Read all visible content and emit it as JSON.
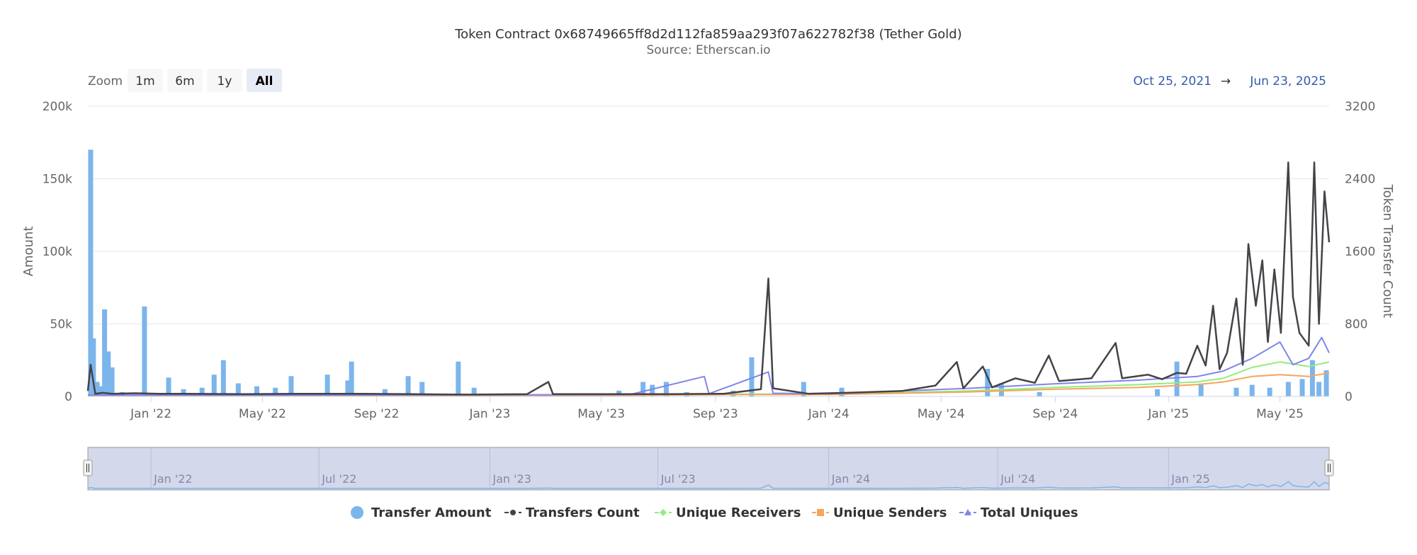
{
  "title": "Token Contract 0x68749665ff8d2d112fa859aa293f07a622782f38 (Tether Gold)",
  "subtitle": "Source: Etherscan.io",
  "zoom": {
    "label": "Zoom",
    "buttons": [
      "1m",
      "6m",
      "1y",
      "All"
    ],
    "active": "All"
  },
  "range": {
    "from": "Oct 25, 2021",
    "arrow": "→",
    "to": "Jun 23, 2025"
  },
  "colors": {
    "transfer_amount": "#7cb5ec",
    "transfers_count": "#434348",
    "unique_receivers": "#90ed7d",
    "unique_senders": "#f7a35c",
    "total_uniques": "#8085e9",
    "range_text": "#335cad",
    "navigator_mask": "#ccd1e8"
  },
  "chart_data": {
    "type": "bar",
    "x_range": [
      "2021-10-25",
      "2025-06-23"
    ],
    "y_axes": [
      {
        "label": "Amount",
        "ticks": [
          "0",
          "50k",
          "100k",
          "150k",
          "200k"
        ],
        "tick_values": [
          0,
          50000,
          100000,
          150000,
          200000
        ],
        "ylim": [
          0,
          200000
        ]
      },
      {
        "label": "Token Transfer Count",
        "ticks": [
          "0",
          "800",
          "1600",
          "2400",
          "3200"
        ],
        "tick_values": [
          0,
          800,
          1600,
          2400,
          3200
        ],
        "ylim": [
          0,
          3200
        ]
      }
    ],
    "x_ticks": [
      {
        "label": "Jan '22",
        "date": "2022-01-01"
      },
      {
        "label": "May '22",
        "date": "2022-05-01"
      },
      {
        "label": "Sep '22",
        "date": "2022-09-01"
      },
      {
        "label": "Jan '23",
        "date": "2023-01-01"
      },
      {
        "label": "May '23",
        "date": "2023-05-01"
      },
      {
        "label": "Sep '23",
        "date": "2023-09-01"
      },
      {
        "label": "Jan '24",
        "date": "2024-01-01"
      },
      {
        "label": "May '24",
        "date": "2024-05-01"
      },
      {
        "label": "Sep '24",
        "date": "2024-09-01"
      },
      {
        "label": "Jan '25",
        "date": "2025-01-01"
      },
      {
        "label": "May '25",
        "date": "2025-05-01"
      }
    ],
    "navigator_ticks": [
      {
        "label": "Jan '22",
        "date": "2022-01-01"
      },
      {
        "label": "Jul '22",
        "date": "2022-07-01"
      },
      {
        "label": "Jan '23",
        "date": "2023-01-01"
      },
      {
        "label": "Jul '23",
        "date": "2023-07-01"
      },
      {
        "label": "Jan '24",
        "date": "2024-01-01"
      },
      {
        "label": "Jul '24",
        "date": "2024-07-01"
      },
      {
        "label": "Jan '25",
        "date": "2025-01-01"
      }
    ],
    "legend": [
      "Transfer Amount",
      "Transfers Count",
      "Unique Receivers",
      "Unique Senders",
      "Total Uniques"
    ],
    "series": [
      {
        "name": "Transfer Amount",
        "type": "column",
        "axis": 0,
        "points": [
          [
            "2021-10-28",
            170000
          ],
          [
            "2021-10-31",
            40000
          ],
          [
            "2021-11-04",
            10000
          ],
          [
            "2021-11-08",
            7000
          ],
          [
            "2021-11-12",
            60000
          ],
          [
            "2021-11-16",
            31000
          ],
          [
            "2021-11-20",
            20000
          ],
          [
            "2021-12-01",
            3000
          ],
          [
            "2021-12-25",
            62000
          ],
          [
            "2022-01-20",
            13000
          ],
          [
            "2022-02-05",
            5000
          ],
          [
            "2022-02-25",
            6000
          ],
          [
            "2022-03-10",
            15000
          ],
          [
            "2022-03-20",
            25000
          ],
          [
            "2022-04-05",
            9000
          ],
          [
            "2022-04-25",
            7000
          ],
          [
            "2022-05-15",
            6000
          ],
          [
            "2022-06-01",
            14000
          ],
          [
            "2022-07-10",
            15000
          ],
          [
            "2022-08-01",
            11000
          ],
          [
            "2022-08-05",
            24000
          ],
          [
            "2022-09-10",
            5000
          ],
          [
            "2022-10-05",
            14000
          ],
          [
            "2022-10-20",
            10000
          ],
          [
            "2022-11-28",
            24000
          ],
          [
            "2022-12-15",
            6000
          ],
          [
            "2023-05-20",
            4000
          ],
          [
            "2023-06-15",
            10000
          ],
          [
            "2023-06-25",
            8000
          ],
          [
            "2023-07-10",
            10000
          ],
          [
            "2023-08-01",
            3000
          ],
          [
            "2023-09-20",
            4000
          ],
          [
            "2023-10-10",
            27000
          ],
          [
            "2023-12-05",
            10000
          ],
          [
            "2024-01-15",
            6000
          ],
          [
            "2024-06-20",
            19000
          ],
          [
            "2024-07-05",
            9000
          ],
          [
            "2024-08-15",
            3000
          ],
          [
            "2024-12-20",
            5000
          ],
          [
            "2025-01-10",
            24000
          ],
          [
            "2025-02-05",
            8000
          ],
          [
            "2025-03-15",
            6000
          ],
          [
            "2025-04-01",
            8000
          ],
          [
            "2025-04-20",
            6000
          ],
          [
            "2025-05-10",
            10000
          ],
          [
            "2025-05-25",
            12000
          ],
          [
            "2025-06-05",
            25000
          ],
          [
            "2025-06-12",
            10000
          ],
          [
            "2025-06-20",
            18000
          ]
        ]
      },
      {
        "name": "Transfers Count",
        "type": "line",
        "axis": 1,
        "points": [
          [
            "2021-10-25",
            60
          ],
          [
            "2021-10-28",
            350
          ],
          [
            "2021-11-02",
            30
          ],
          [
            "2021-11-10",
            40
          ],
          [
            "2021-11-20",
            30
          ],
          [
            "2021-12-15",
            35
          ],
          [
            "2022-01-10",
            30
          ],
          [
            "2022-02-10",
            30
          ],
          [
            "2022-04-10",
            25
          ],
          [
            "2022-06-10",
            30
          ],
          [
            "2022-08-10",
            30
          ],
          [
            "2022-10-10",
            25
          ],
          [
            "2022-12-10",
            20
          ],
          [
            "2023-02-10",
            25
          ],
          [
            "2023-03-05",
            160
          ],
          [
            "2023-03-10",
            25
          ],
          [
            "2023-05-10",
            25
          ],
          [
            "2023-07-10",
            25
          ],
          [
            "2023-09-10",
            30
          ],
          [
            "2023-10-20",
            80
          ],
          [
            "2023-10-28",
            1300
          ],
          [
            "2023-11-02",
            90
          ],
          [
            "2023-12-10",
            30
          ],
          [
            "2024-01-20",
            40
          ],
          [
            "2024-03-20",
            60
          ],
          [
            "2024-04-25",
            120
          ],
          [
            "2024-05-18",
            380
          ],
          [
            "2024-05-25",
            90
          ],
          [
            "2024-06-15",
            330
          ],
          [
            "2024-06-25",
            100
          ],
          [
            "2024-07-20",
            200
          ],
          [
            "2024-08-10",
            150
          ],
          [
            "2024-08-25",
            450
          ],
          [
            "2024-09-05",
            170
          ],
          [
            "2024-10-10",
            200
          ],
          [
            "2024-11-05",
            590
          ],
          [
            "2024-11-12",
            200
          ],
          [
            "2024-12-10",
            240
          ],
          [
            "2024-12-25",
            190
          ],
          [
            "2025-01-10",
            260
          ],
          [
            "2025-01-20",
            250
          ],
          [
            "2025-02-01",
            560
          ],
          [
            "2025-02-10",
            340
          ],
          [
            "2025-02-18",
            1000
          ],
          [
            "2025-02-25",
            300
          ],
          [
            "2025-03-05",
            480
          ],
          [
            "2025-03-15",
            1080
          ],
          [
            "2025-03-22",
            350
          ],
          [
            "2025-03-28",
            1680
          ],
          [
            "2025-04-05",
            1000
          ],
          [
            "2025-04-12",
            1500
          ],
          [
            "2025-04-18",
            600
          ],
          [
            "2025-04-25",
            1400
          ],
          [
            "2025-05-02",
            700
          ],
          [
            "2025-05-10",
            2580
          ],
          [
            "2025-05-15",
            1100
          ],
          [
            "2025-05-22",
            700
          ],
          [
            "2025-06-01",
            560
          ],
          [
            "2025-06-07",
            2580
          ],
          [
            "2025-06-12",
            800
          ],
          [
            "2025-06-18",
            2260
          ],
          [
            "2025-06-23",
            1700
          ]
        ]
      },
      {
        "name": "Unique Receivers",
        "type": "line",
        "axis": 1,
        "points": [
          [
            "2021-10-25",
            10
          ],
          [
            "2022-06-01",
            10
          ],
          [
            "2023-06-01",
            15
          ],
          [
            "2023-09-10",
            25
          ],
          [
            "2024-01-01",
            25
          ],
          [
            "2024-06-01",
            60
          ],
          [
            "2024-09-01",
            100
          ],
          [
            "2024-12-01",
            130
          ],
          [
            "2025-02-01",
            160
          ],
          [
            "2025-03-01",
            200
          ],
          [
            "2025-04-01",
            320
          ],
          [
            "2025-05-01",
            380
          ],
          [
            "2025-06-01",
            330
          ],
          [
            "2025-06-23",
            380
          ]
        ]
      },
      {
        "name": "Unique Senders",
        "type": "line",
        "axis": 1,
        "points": [
          [
            "2021-10-25",
            8
          ],
          [
            "2022-06-01",
            8
          ],
          [
            "2023-06-01",
            12
          ],
          [
            "2023-09-10",
            20
          ],
          [
            "2024-01-01",
            20
          ],
          [
            "2024-06-01",
            50
          ],
          [
            "2024-09-01",
            80
          ],
          [
            "2024-12-01",
            100
          ],
          [
            "2025-02-01",
            130
          ],
          [
            "2025-03-01",
            160
          ],
          [
            "2025-04-01",
            220
          ],
          [
            "2025-05-01",
            240
          ],
          [
            "2025-06-01",
            220
          ],
          [
            "2025-06-23",
            260
          ]
        ]
      },
      {
        "name": "Total Uniques",
        "type": "line",
        "axis": 1,
        "points": [
          [
            "2021-10-25",
            15
          ],
          [
            "2022-06-01",
            15
          ],
          [
            "2023-06-01",
            20
          ],
          [
            "2023-08-20",
            220
          ],
          [
            "2023-08-25",
            30
          ],
          [
            "2023-10-28",
            270
          ],
          [
            "2023-11-02",
            35
          ],
          [
            "2024-01-01",
            30
          ],
          [
            "2024-06-01",
            90
          ],
          [
            "2024-09-01",
            140
          ],
          [
            "2024-12-01",
            180
          ],
          [
            "2025-02-01",
            220
          ],
          [
            "2025-03-01",
            280
          ],
          [
            "2025-04-01",
            420
          ],
          [
            "2025-05-01",
            600
          ],
          [
            "2025-05-15",
            350
          ],
          [
            "2025-06-01",
            420
          ],
          [
            "2025-06-15",
            650
          ],
          [
            "2025-06-23",
            480
          ]
        ]
      }
    ]
  }
}
